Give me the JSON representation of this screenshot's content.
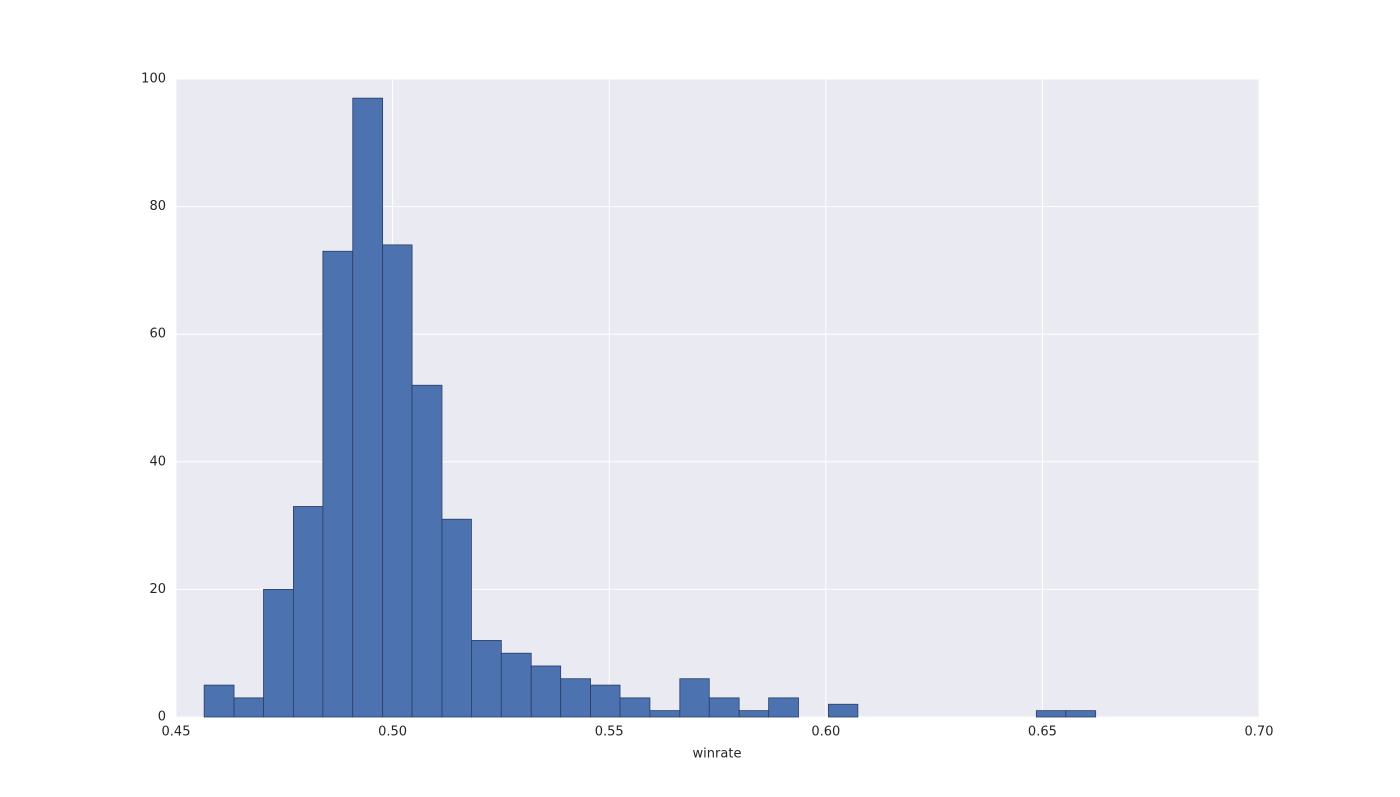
{
  "chart_data": {
    "type": "histogram",
    "x_label": "winrate",
    "bins": [
      0.4565,
      0.4634,
      0.4702,
      0.4771,
      0.4839,
      0.4908,
      0.4977,
      0.5045,
      0.5114,
      0.5182,
      0.5251,
      0.532,
      0.5388,
      0.5457,
      0.5525,
      0.5594,
      0.5663,
      0.5731,
      0.58,
      0.5868,
      0.5937,
      0.6006,
      0.6074,
      0.6143,
      0.6211,
      0.628,
      0.6349,
      0.6417,
      0.6486,
      0.6554,
      0.6623
    ],
    "counts": [
      5,
      3,
      20,
      33,
      73,
      97,
      74,
      52,
      31,
      12,
      10,
      8,
      6,
      5,
      3,
      1,
      6,
      3,
      1,
      3,
      0,
      2,
      0,
      0,
      0,
      0,
      0,
      0,
      1,
      1
    ],
    "color": "#4c72b0",
    "xlim": [
      0.45,
      0.7
    ],
    "xticks": [
      {
        "value": 0.45,
        "label": "0.45"
      },
      {
        "value": 0.5,
        "label": "0.50"
      },
      {
        "value": 0.55,
        "label": "0.55"
      },
      {
        "value": 0.6,
        "label": "0.60"
      },
      {
        "value": 0.65,
        "label": "0.65"
      },
      {
        "value": 0.7,
        "label": "0.70"
      }
    ],
    "ylim": [
      0,
      100
    ],
    "yticks": [
      0,
      20,
      40,
      60,
      80,
      100
    ],
    "grid": true
  }
}
